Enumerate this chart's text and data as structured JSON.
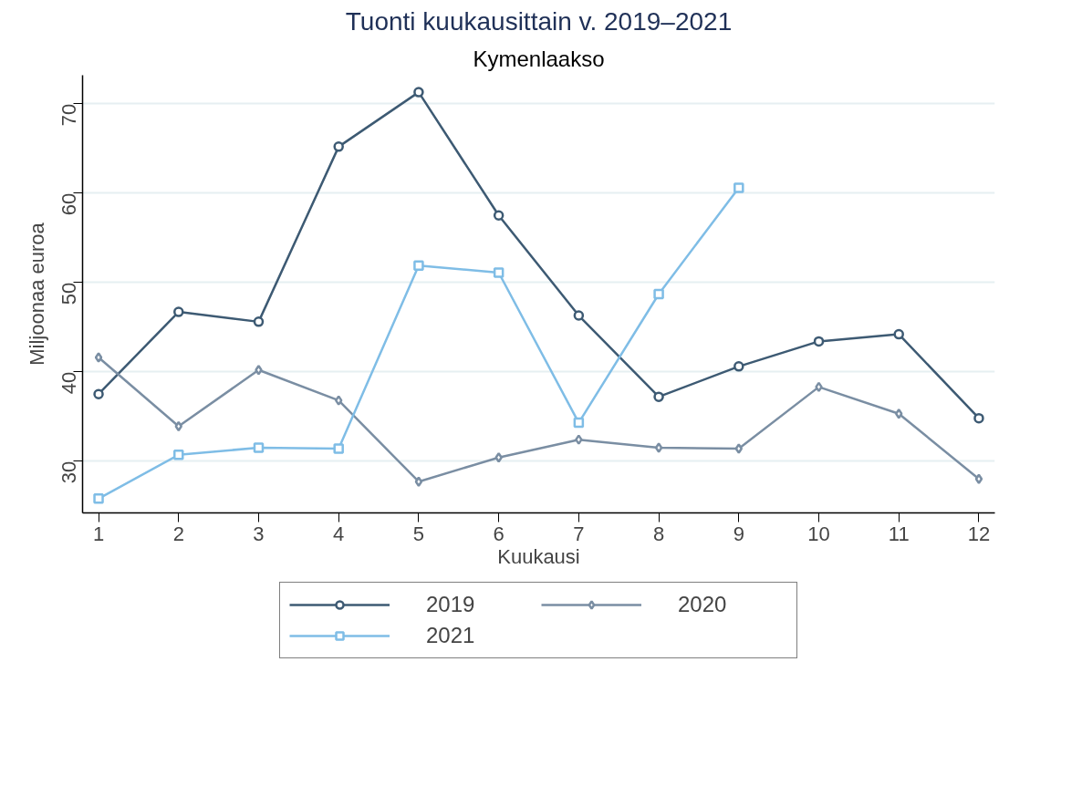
{
  "chart_data": {
    "type": "line",
    "title": "Tuonti kuukausittain v. 2019–2021",
    "subtitle": "Kymenlaakso",
    "xlabel": "Kuukausi",
    "ylabel": "Miljoonaa euroa",
    "x": [
      1,
      2,
      3,
      4,
      5,
      6,
      7,
      8,
      9,
      10,
      11,
      12
    ],
    "series": [
      {
        "name": "2019",
        "color": "#3d5a73",
        "marker": "circle",
        "values": [
          37.5,
          46.7,
          45.6,
          65.2,
          71.3,
          57.5,
          46.3,
          37.2,
          40.6,
          43.4,
          44.2,
          34.8
        ]
      },
      {
        "name": "2020",
        "color": "#7a8ea3",
        "marker": "diamond",
        "values": [
          41.6,
          33.9,
          40.2,
          36.8,
          27.7,
          30.4,
          32.4,
          31.5,
          31.4,
          38.3,
          35.3,
          28.0
        ]
      },
      {
        "name": "2021",
        "color": "#7fbde6",
        "marker": "square",
        "values": [
          25.8,
          30.7,
          31.5,
          31.4,
          51.9,
          51.1,
          34.3,
          48.7,
          60.6,
          null,
          null,
          null
        ]
      }
    ],
    "xlim": [
      0.8,
      12.2
    ],
    "ylim": [
      24.2,
      73.2
    ],
    "xticks": [
      1,
      2,
      3,
      4,
      5,
      6,
      7,
      8,
      9,
      10,
      11,
      12
    ],
    "yticks": [
      30,
      40,
      50,
      60,
      70
    ],
    "grid": "y",
    "legend": "bottom",
    "line_style": "solid"
  }
}
